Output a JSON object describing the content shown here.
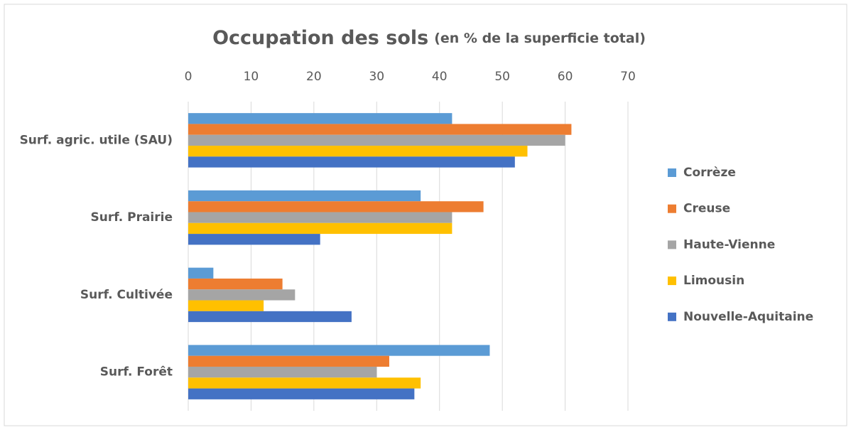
{
  "chart_data": {
    "type": "hbar",
    "title": "Occupation des sols",
    "subtitle": "(en % de la superficie total)",
    "categories": [
      "Surf. agric. utile (SAU)",
      "Surf. Prairie",
      "Surf. Cultivée",
      "Surf. Forêt"
    ],
    "series": [
      {
        "name": "Corrèze",
        "color": "#5B9BD5",
        "values": [
          42,
          37,
          4,
          48
        ]
      },
      {
        "name": "Creuse",
        "color": "#ED7D31",
        "values": [
          61,
          47,
          15,
          32
        ]
      },
      {
        "name": "Haute-Vienne",
        "color": "#A5A5A5",
        "values": [
          60,
          42,
          17,
          30
        ]
      },
      {
        "name": "Limousin",
        "color": "#FFC000",
        "values": [
          54,
          42,
          12,
          37
        ]
      },
      {
        "name": "Nouvelle-Aquitaine",
        "color": "#4472C4",
        "values": [
          52,
          21,
          26,
          36
        ]
      }
    ],
    "xlim": [
      0,
      70
    ],
    "xticks": [
      0,
      10,
      20,
      30,
      40,
      50,
      60,
      70
    ],
    "grid": true,
    "legend": "right"
  }
}
